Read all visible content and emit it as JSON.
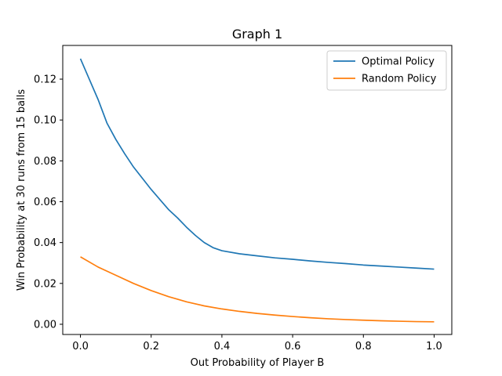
{
  "chart_data": {
    "type": "line",
    "title": "Graph 1",
    "xlabel": "Out Probability of Player B",
    "ylabel": "Win Probability at 30 runs from 15 balls",
    "xlim": [
      -0.05,
      1.05
    ],
    "ylim": [
      -0.005,
      0.1365
    ],
    "xticks": [
      0.0,
      0.2,
      0.4,
      0.6,
      0.8,
      1.0
    ],
    "xtick_labels": [
      "0.0",
      "0.2",
      "0.4",
      "0.6",
      "0.8",
      "1.0"
    ],
    "yticks": [
      0.0,
      0.02,
      0.04,
      0.06,
      0.08,
      0.1,
      0.12
    ],
    "ytick_labels": [
      "0.00",
      "0.02",
      "0.04",
      "0.06",
      "0.08",
      "0.10",
      "0.12"
    ],
    "grid": false,
    "legend_position": "top-right",
    "series": [
      {
        "name": "Optimal Policy",
        "color": "#1f77b4",
        "x": [
          0.0,
          0.025,
          0.05,
          0.075,
          0.1,
          0.125,
          0.15,
          0.175,
          0.2,
          0.225,
          0.25,
          0.275,
          0.3,
          0.325,
          0.35,
          0.375,
          0.4,
          0.45,
          0.5,
          0.55,
          0.6,
          0.65,
          0.7,
          0.75,
          0.8,
          0.85,
          0.9,
          0.95,
          1.0
        ],
        "y": [
          0.13,
          0.12,
          0.11,
          0.0985,
          0.0905,
          0.0835,
          0.077,
          0.0715,
          0.066,
          0.061,
          0.056,
          0.052,
          0.0475,
          0.0435,
          0.04,
          0.0375,
          0.036,
          0.0345,
          0.0335,
          0.0325,
          0.0318,
          0.031,
          0.0303,
          0.0297,
          0.029,
          0.0285,
          0.028,
          0.0275,
          0.027
        ]
      },
      {
        "name": "Random Policy",
        "color": "#ff7f0e",
        "x": [
          0.0,
          0.05,
          0.1,
          0.15,
          0.2,
          0.25,
          0.3,
          0.35,
          0.4,
          0.45,
          0.5,
          0.55,
          0.6,
          0.65,
          0.7,
          0.75,
          0.8,
          0.85,
          0.9,
          0.95,
          1.0
        ],
        "y": [
          0.033,
          0.028,
          0.024,
          0.02,
          0.0165,
          0.0135,
          0.011,
          0.009,
          0.0075,
          0.0063,
          0.0053,
          0.0045,
          0.0038,
          0.0032,
          0.0027,
          0.0023,
          0.002,
          0.0017,
          0.0015,
          0.0013,
          0.0012
        ]
      }
    ]
  }
}
